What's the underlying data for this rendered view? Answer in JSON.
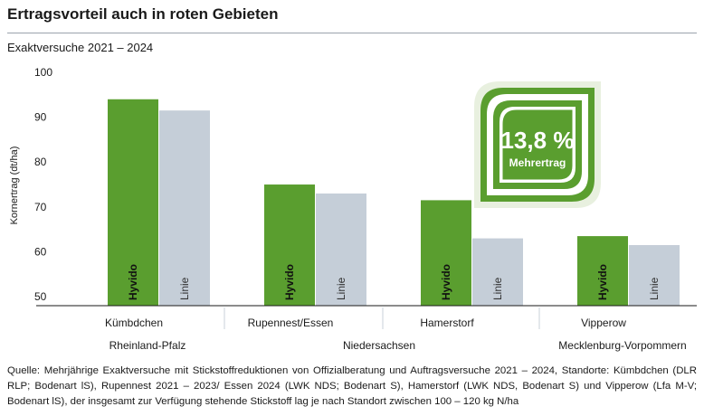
{
  "title": "Ertragsvorteil auch in roten Gebieten",
  "subtitle": "Exaktversuche 2021 – 2024",
  "badge": {
    "value": "13,8 %",
    "label": "Mehrertrag"
  },
  "source": "Quelle: Mehrjährige Exaktversuche mit Stickstoffreduktionen von Offizialberatung und Auftragsversuche 2021 – 2024, Standorte: Kümbdchen (DLR RLP; Bodenart lS), Rupennest 2021 – 2023/ Essen 2024 (LWK NDS; Bodenart S), Hamerstorf (LWK NDS, Bodenart S) und Vipperow (Lfa M-V; Bodenart lS), der insgesamt zur Verfügung stehende Stickstoff lag je nach Standort zwischen 100 – 120 kg N/ha",
  "colors": {
    "hyvido": "#5a9e2f",
    "linie": "#c5ced8",
    "badge": "#5a9e2f"
  },
  "chart_data": {
    "type": "bar",
    "categories": [
      "Kümbdchen",
      "Rupennest/Essen",
      "Hamerstorf",
      "Vipperow"
    ],
    "regions": [
      "Rheinland-Pfalz",
      "Niedersachsen",
      "Mecklenburg-Vorpommern"
    ],
    "series": [
      {
        "name": "Hyvido",
        "values": [
          94,
          75,
          71.5,
          63.5
        ]
      },
      {
        "name": "Linie",
        "values": [
          91.5,
          73,
          63,
          61.5
        ]
      }
    ],
    "ylabel": "Kornertrag (dt/ha)",
    "yticks": [
      50,
      60,
      70,
      80,
      90,
      100
    ],
    "ylim": [
      48,
      100
    ]
  }
}
